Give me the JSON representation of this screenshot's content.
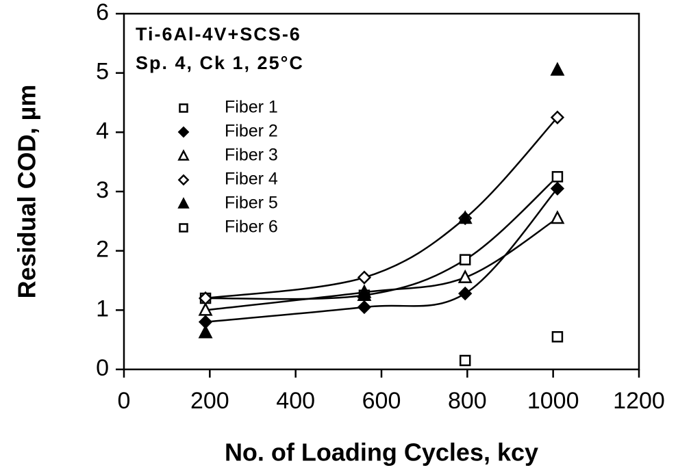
{
  "chart_data": {
    "type": "line",
    "annotations": [
      "Ti-6Al-4V+SCS-6",
      "Sp. 4, Ck 1, 25°C"
    ],
    "x_label": "No. of Loading Cycles, kcy",
    "y_label": "Residual COD, µm",
    "x": [
      190,
      560,
      795,
      1010
    ],
    "series": [
      {
        "name": "Fiber 1",
        "color": "#000000",
        "marker": "square",
        "filled": false,
        "line": true,
        "values": [
          1.2,
          1.25,
          1.85,
          3.25
        ]
      },
      {
        "name": "Fiber 2",
        "color": "#000000",
        "marker": "diamond",
        "filled": true,
        "line": true,
        "values": [
          0.8,
          1.05,
          1.28,
          3.05
        ]
      },
      {
        "name": "Fiber 3",
        "color": "#000000",
        "marker": "triangle",
        "filled": false,
        "line": true,
        "values": [
          1.0,
          1.3,
          1.55,
          2.55
        ]
      },
      {
        "name": "Fiber 4",
        "color": "#000000",
        "marker": "diamond",
        "filled": false,
        "line": true,
        "values": [
          1.2,
          1.55,
          2.55,
          4.25
        ]
      },
      {
        "name": "Fiber 5",
        "color": "#000000",
        "marker": "triangle",
        "filled": true,
        "line": false,
        "values": [
          0.62,
          1.25,
          2.55,
          5.05
        ]
      },
      {
        "name": "Fiber 6",
        "color": "#000000",
        "marker": "square",
        "filled": false,
        "line": false,
        "values": [
          null,
          null,
          0.15,
          0.55
        ]
      }
    ],
    "xlim": [
      0,
      1200
    ],
    "xticks": [
      0,
      200,
      400,
      600,
      800,
      1000,
      1200
    ],
    "ylim": [
      0,
      6
    ],
    "yticks": [
      0,
      1,
      2,
      3,
      4,
      5,
      6
    ],
    "grid": false
  }
}
